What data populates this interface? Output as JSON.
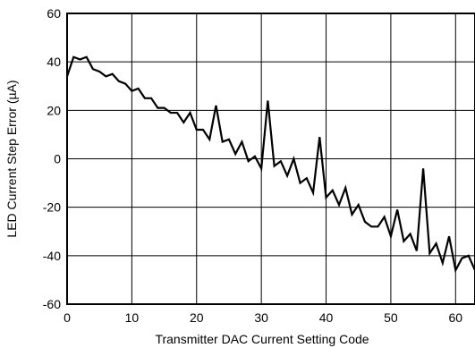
{
  "chart_data": {
    "type": "line",
    "title": "",
    "xlabel": "Transmitter DAC Current Setting Code",
    "ylabel": "LED Current Step Error (µA)",
    "xlim": [
      0,
      63
    ],
    "ylim": [
      -60,
      60
    ],
    "x_ticks": [
      0,
      10,
      20,
      30,
      40,
      50,
      60
    ],
    "y_ticks": [
      -60,
      -40,
      -20,
      0,
      20,
      40,
      60
    ],
    "x_tick_labels": [
      "0",
      "10",
      "20",
      "30",
      "40",
      "50",
      "60"
    ],
    "y_tick_labels": [
      "-60",
      "-40",
      "-20",
      "0",
      "20",
      "40",
      "60"
    ],
    "grid": true,
    "line_color": "#000000",
    "series": [
      {
        "x": [
          0,
          1,
          2,
          3,
          4,
          5,
          6,
          7,
          8,
          9,
          10,
          11,
          12,
          13,
          14,
          15,
          16,
          17,
          18,
          19,
          20,
          21,
          22,
          23,
          24,
          25,
          26,
          27,
          28,
          29,
          30,
          31,
          32,
          33,
          34,
          35,
          36,
          37,
          38,
          39,
          40,
          41,
          42,
          43,
          44,
          45,
          46,
          47,
          48,
          49,
          50,
          51,
          52,
          53,
          54,
          55,
          56,
          57,
          58,
          59,
          60,
          61,
          62,
          63
        ],
        "y": [
          34,
          42,
          41,
          42,
          37,
          36,
          34,
          35,
          32,
          31,
          28,
          29,
          25,
          25,
          21,
          21,
          19,
          19,
          15,
          19,
          12,
          12,
          8,
          22,
          7,
          8,
          2,
          7,
          -1,
          1,
          -4,
          24,
          -3,
          -1,
          -7,
          0,
          -10,
          -8,
          -14,
          9,
          -16,
          -13,
          -19,
          -12,
          -23,
          -19,
          -26,
          -28,
          -28,
          -24,
          -32,
          -21,
          -34,
          -31,
          -38,
          -4,
          -39,
          -35,
          -43,
          -32,
          -46,
          -41,
          -40,
          -46
        ]
      }
    ]
  }
}
